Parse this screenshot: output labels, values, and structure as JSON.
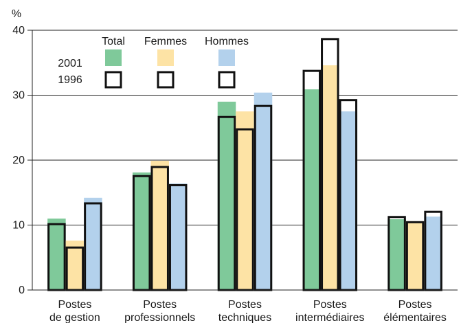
{
  "chart_data": {
    "type": "bar",
    "title": "",
    "unit_label": "%",
    "xlabel": "",
    "ylabel": "",
    "ylim": [
      0,
      40
    ],
    "yticks": [
      0,
      10,
      20,
      30,
      40
    ],
    "grid": true,
    "legend_placement": "top-left",
    "categories": [
      [
        "Postes",
        "de gestion"
      ],
      [
        "Postes",
        "professionnels"
      ],
      [
        "Postes",
        "techniques"
      ],
      [
        "Postes",
        "intermédiaires"
      ],
      [
        "Postes",
        "élémentaires"
      ]
    ],
    "legend": {
      "series_labels": [
        "Total",
        "Femmes",
        "Hommes"
      ],
      "year_labels": [
        "2001",
        "1996"
      ]
    },
    "series": [
      {
        "name": "Total",
        "color": "#7fc99a",
        "values_2001": [
          11.0,
          18.1,
          29.0,
          30.9,
          10.9
        ],
        "values_1996": [
          10.3,
          17.7,
          26.8,
          33.9,
          11.4
        ]
      },
      {
        "name": "Femmes",
        "color": "#fde3a5",
        "values_2001": [
          7.6,
          19.9,
          27.5,
          34.6,
          10.6
        ],
        "values_1996": [
          6.7,
          19.1,
          24.9,
          38.8,
          10.6
        ]
      },
      {
        "name": "Hommes",
        "color": "#b3d1ec",
        "values_2001": [
          14.2,
          16.4,
          30.4,
          27.5,
          11.3
        ],
        "values_1996": [
          13.5,
          16.3,
          28.5,
          29.4,
          12.2
        ]
      }
    ],
    "outline_color": "#111111"
  }
}
